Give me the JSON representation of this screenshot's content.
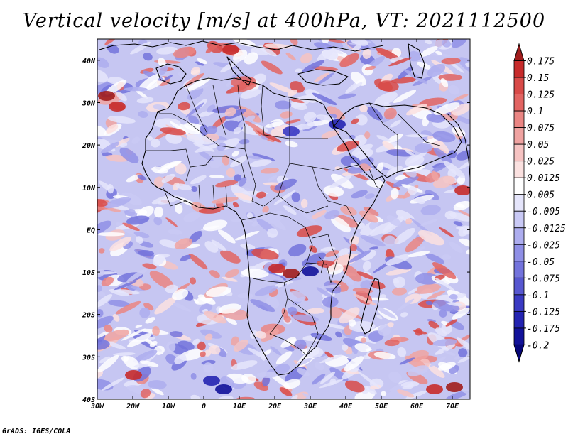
{
  "title": "Vertical velocity [m/s] at 400hPa, VT: 2021112500",
  "credit": "GrADS: IGES/COLA",
  "map": {
    "lon_range": [
      -30,
      75
    ],
    "lat_range": [
      -40,
      45
    ],
    "lon_ticks": [
      {
        "value": -30,
        "label": "30W"
      },
      {
        "value": -20,
        "label": "20W"
      },
      {
        "value": -10,
        "label": "10W"
      },
      {
        "value": 0,
        "label": "0"
      },
      {
        "value": 10,
        "label": "10E"
      },
      {
        "value": 20,
        "label": "20E"
      },
      {
        "value": 30,
        "label": "30E"
      },
      {
        "value": 40,
        "label": "40E"
      },
      {
        "value": 50,
        "label": "50E"
      },
      {
        "value": 60,
        "label": "60E"
      },
      {
        "value": 70,
        "label": "70E"
      }
    ],
    "lat_ticks": [
      {
        "value": 40,
        "label": "40N"
      },
      {
        "value": 30,
        "label": "30N"
      },
      {
        "value": 20,
        "label": "20N"
      },
      {
        "value": 10,
        "label": "10N"
      },
      {
        "value": 0,
        "label": "EQ"
      },
      {
        "value": -10,
        "label": "10S"
      },
      {
        "value": -20,
        "label": "20S"
      },
      {
        "value": -30,
        "label": "30S"
      },
      {
        "value": -40,
        "label": "40S"
      }
    ]
  },
  "colorbar": {
    "levels": [
      "0.175",
      "0.15",
      "0.125",
      "0.1",
      "0.075",
      "0.05",
      "0.025",
      "0.0125",
      "0.005",
      "-0.005",
      "-0.0125",
      "-0.025",
      "-0.05",
      "-0.075",
      "-0.1",
      "-0.125",
      "-0.175",
      "-0.2"
    ],
    "colors": [
      "#a11d1d",
      "#c72b2b",
      "#d84a48",
      "#e26462",
      "#ea8583",
      "#f0a3a1",
      "#f6c3c2",
      "#fbe1e0",
      "#ffffff",
      "#e5e5fb",
      "#c9c9f5",
      "#adadef",
      "#8f8fe6",
      "#7373dc",
      "#5757d0",
      "#3a3ac3",
      "#2323b1",
      "#12129a",
      "#06067a"
    ]
  }
}
